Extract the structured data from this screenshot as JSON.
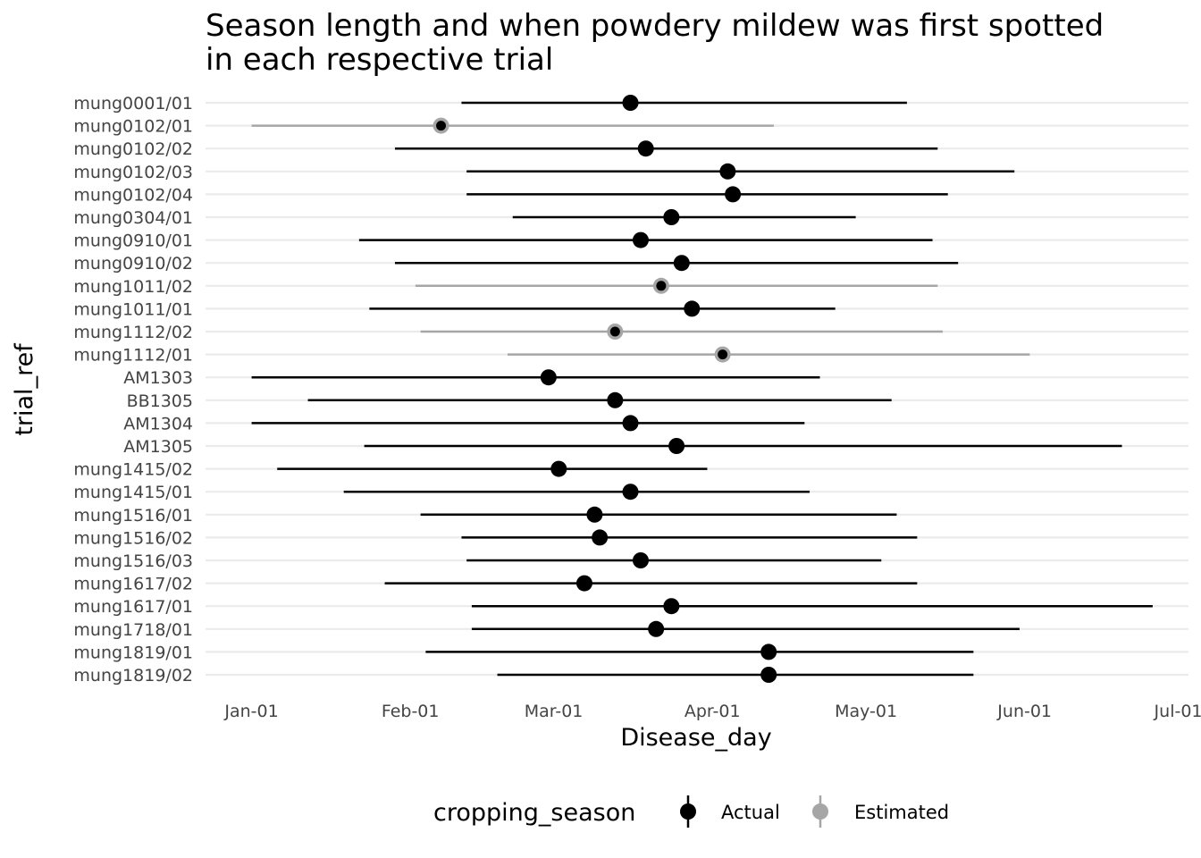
{
  "chart_data": {
    "type": "range-dot",
    "title_lines": [
      "Season length and when powdery mildew was first spotted",
      "in each respective trial"
    ],
    "xlabel": "Disease_day",
    "ylabel": "trial_ref",
    "x_ticks": [
      {
        "label": "Jan-01",
        "day": 0
      },
      {
        "label": "Feb-01",
        "day": 31
      },
      {
        "label": "Mar-01",
        "day": 59
      },
      {
        "label": "Apr-01",
        "day": 90
      },
      {
        "label": "May-01",
        "day": 120
      },
      {
        "label": "Jun-01",
        "day": 151
      },
      {
        "label": "Jul-01",
        "day": 181
      }
    ],
    "xlim": [
      -9,
      183
    ],
    "grid": "horizontal-major",
    "legend": {
      "title": "cropping_season",
      "position": "bottom",
      "entries": [
        {
          "name": "Actual",
          "color": "#000000"
        },
        {
          "name": "Estimated",
          "color": "#A6A6A6"
        }
      ]
    },
    "rows": [
      {
        "trial_ref": "mung0001/01",
        "start": 41,
        "disease": 74,
        "end": 128,
        "season": "Actual"
      },
      {
        "trial_ref": "mung0102/01",
        "start": 0,
        "disease": 37,
        "end": 102,
        "season": "Estimated"
      },
      {
        "trial_ref": "mung0102/02",
        "start": 28,
        "disease": 77,
        "end": 134,
        "season": "Actual"
      },
      {
        "trial_ref": "mung0102/03",
        "start": 42,
        "disease": 93,
        "end": 149,
        "season": "Actual"
      },
      {
        "trial_ref": "mung0102/04",
        "start": 42,
        "disease": 94,
        "end": 136,
        "season": "Actual"
      },
      {
        "trial_ref": "mung0304/01",
        "start": 51,
        "disease": 82,
        "end": 118,
        "season": "Actual"
      },
      {
        "trial_ref": "mung0910/01",
        "start": 21,
        "disease": 76,
        "end": 133,
        "season": "Actual"
      },
      {
        "trial_ref": "mung0910/02",
        "start": 28,
        "disease": 84,
        "end": 138,
        "season": "Actual"
      },
      {
        "trial_ref": "mung1011/02",
        "start": 32,
        "disease": 80,
        "end": 134,
        "season": "Estimated"
      },
      {
        "trial_ref": "mung1011/01",
        "start": 23,
        "disease": 86,
        "end": 114,
        "season": "Actual"
      },
      {
        "trial_ref": "mung1112/02",
        "start": 33,
        "disease": 71,
        "end": 135,
        "season": "Estimated"
      },
      {
        "trial_ref": "mung1112/01",
        "start": 50,
        "disease": 92,
        "end": 152,
        "season": "Estimated"
      },
      {
        "trial_ref": "AM1303",
        "start": 0,
        "disease": 58,
        "end": 111,
        "season": "Actual"
      },
      {
        "trial_ref": "BB1305",
        "start": 11,
        "disease": 71,
        "end": 125,
        "season": "Actual"
      },
      {
        "trial_ref": "AM1304",
        "start": 0,
        "disease": 74,
        "end": 108,
        "season": "Actual"
      },
      {
        "trial_ref": "AM1305",
        "start": 22,
        "disease": 83,
        "end": 170,
        "season": "Actual"
      },
      {
        "trial_ref": "mung1415/02",
        "start": 5,
        "disease": 60,
        "end": 89,
        "season": "Actual"
      },
      {
        "trial_ref": "mung1415/01",
        "start": 18,
        "disease": 74,
        "end": 109,
        "season": "Actual"
      },
      {
        "trial_ref": "mung1516/01",
        "start": 33,
        "disease": 67,
        "end": 126,
        "season": "Actual"
      },
      {
        "trial_ref": "mung1516/02",
        "start": 41,
        "disease": 68,
        "end": 130,
        "season": "Actual"
      },
      {
        "trial_ref": "mung1516/03",
        "start": 42,
        "disease": 76,
        "end": 123,
        "season": "Actual"
      },
      {
        "trial_ref": "mung1617/02",
        "start": 26,
        "disease": 65,
        "end": 130,
        "season": "Actual"
      },
      {
        "trial_ref": "mung1617/01",
        "start": 43,
        "disease": 82,
        "end": 176,
        "season": "Actual"
      },
      {
        "trial_ref": "mung1718/01",
        "start": 43,
        "disease": 79,
        "end": 150,
        "season": "Actual"
      },
      {
        "trial_ref": "mung1819/01",
        "start": 34,
        "disease": 101,
        "end": 141,
        "season": "Actual"
      },
      {
        "trial_ref": "mung1819/02",
        "start": 48,
        "disease": 101,
        "end": 141,
        "season": "Actual"
      }
    ]
  }
}
